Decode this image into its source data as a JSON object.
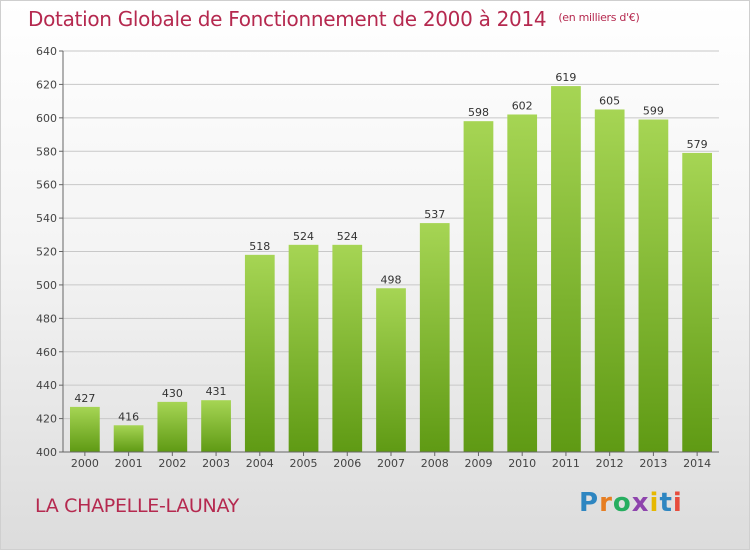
{
  "header": {
    "title": "Dotation Globale de Fonctionnement de 2000 à 2014",
    "unit": "(en milliers d'€)"
  },
  "footer": {
    "commune": "LA CHAPELLE-LAUNAY",
    "brand": "Proxiti"
  },
  "colors": {
    "title": "#b5294f",
    "bar_top": "#a6d554",
    "bar_bottom": "#5f9a14"
  },
  "chart_data": {
    "type": "bar",
    "title": "Dotation Globale de Fonctionnement de 2000 à 2014",
    "xlabel": "",
    "ylabel": "",
    "categories": [
      "2000",
      "2001",
      "2002",
      "2003",
      "2004",
      "2005",
      "2006",
      "2007",
      "2008",
      "2009",
      "2010",
      "2011",
      "2012",
      "2013",
      "2014"
    ],
    "values": [
      427,
      416,
      430,
      431,
      518,
      524,
      524,
      498,
      537,
      598,
      602,
      619,
      605,
      599,
      579
    ],
    "ylim": [
      400,
      640
    ],
    "yticks": [
      400,
      420,
      440,
      460,
      480,
      500,
      520,
      540,
      560,
      580,
      600,
      620,
      640
    ],
    "grid": true,
    "data_labels": true
  }
}
